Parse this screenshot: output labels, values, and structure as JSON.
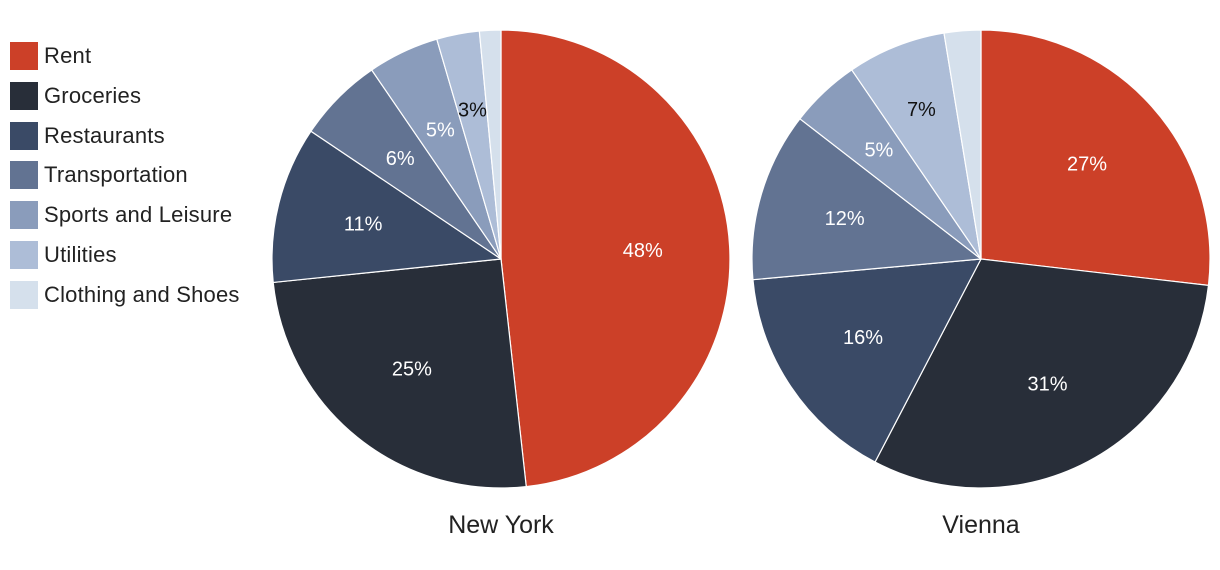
{
  "chart_data": [
    {
      "type": "pie",
      "title": "New York",
      "categories": [
        "Rent",
        "Groceries",
        "Restaurants",
        "Transportation",
        "Sports and Leisure",
        "Utilities",
        "Clothing and Shoes"
      ],
      "values": [
        48,
        25,
        11,
        6,
        5,
        3,
        1.5
      ],
      "labels": [
        "48%",
        "25%",
        "11%",
        "6%",
        "5%",
        "3%",
        ""
      ]
    },
    {
      "type": "pie",
      "title": "Vienna",
      "categories": [
        "Rent",
        "Groceries",
        "Restaurants",
        "Transportation",
        "Sports and Leisure",
        "Utilities",
        "Clothing and Shoes"
      ],
      "values": [
        27,
        31,
        16,
        12,
        5,
        7,
        2.6
      ],
      "labels": [
        "27%",
        "31%",
        "16%",
        "12%",
        "5%",
        "7%",
        ""
      ]
    }
  ],
  "legend": [
    {
      "label": "Rent",
      "color": "#cc4028"
    },
    {
      "label": "Groceries",
      "color": "#282e39"
    },
    {
      "label": "Restaurants",
      "color": "#3a4a66"
    },
    {
      "label": "Transportation",
      "color": "#627392"
    },
    {
      "label": "Sports and Leisure",
      "color": "#8a9cbb"
    },
    {
      "label": "Utilities",
      "color": "#adbdd7"
    },
    {
      "label": "Clothing and Shoes",
      "color": "#d5e0ec"
    }
  ],
  "label_colors": {
    "light": "#ffffff",
    "dark": "#111111"
  },
  "legend_position": "left"
}
